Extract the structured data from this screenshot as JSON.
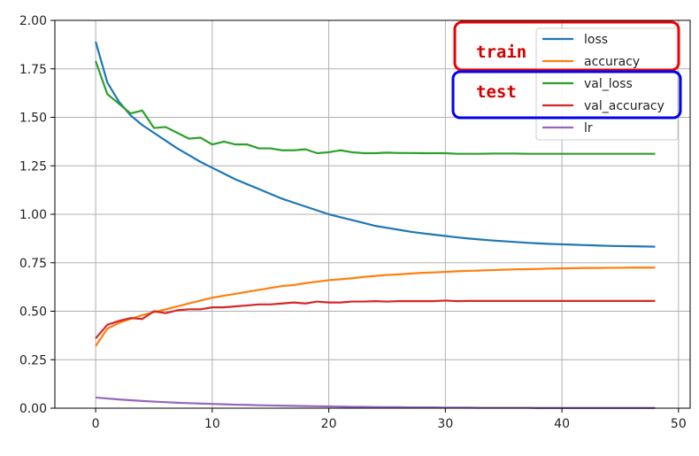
{
  "chart_data": {
    "type": "line",
    "title": "",
    "xlabel": "",
    "ylabel": "",
    "xlim": [
      -3.5,
      51
    ],
    "ylim": [
      0,
      2.0
    ],
    "xticks": [
      0,
      10,
      20,
      30,
      40,
      50
    ],
    "yticks": [
      0.0,
      0.25,
      0.5,
      0.75,
      1.0,
      1.25,
      1.5,
      1.75,
      2.0
    ],
    "xtick_labels": [
      "0",
      "10",
      "20",
      "30",
      "40",
      "50"
    ],
    "ytick_labels": [
      "0.00",
      "0.25",
      "0.50",
      "0.75",
      "1.00",
      "1.25",
      "1.50",
      "1.75",
      "2.00"
    ],
    "grid": true,
    "legend_position": "top-right",
    "x": [
      0,
      1,
      2,
      3,
      4,
      5,
      6,
      7,
      8,
      9,
      10,
      11,
      12,
      13,
      14,
      15,
      16,
      17,
      18,
      19,
      20,
      21,
      22,
      23,
      24,
      25,
      26,
      27,
      28,
      29,
      30,
      31,
      32,
      33,
      34,
      35,
      36,
      37,
      38,
      39,
      40,
      41,
      42,
      43,
      44,
      45,
      46,
      47,
      48
    ],
    "series": [
      {
        "name": "loss",
        "color": "#1f77b4",
        "values": [
          1.89,
          1.68,
          1.58,
          1.51,
          1.46,
          1.42,
          1.38,
          1.34,
          1.305,
          1.27,
          1.24,
          1.21,
          1.18,
          1.155,
          1.13,
          1.105,
          1.08,
          1.06,
          1.04,
          1.02,
          1.0,
          0.985,
          0.97,
          0.955,
          0.94,
          0.93,
          0.92,
          0.91,
          0.902,
          0.895,
          0.888,
          0.881,
          0.875,
          0.87,
          0.865,
          0.861,
          0.857,
          0.853,
          0.85,
          0.847,
          0.845,
          0.843,
          0.841,
          0.839,
          0.837,
          0.836,
          0.835,
          0.834,
          0.833
        ]
      },
      {
        "name": "accuracy",
        "color": "#ff7f0e",
        "values": [
          0.32,
          0.41,
          0.44,
          0.46,
          0.48,
          0.495,
          0.51,
          0.525,
          0.54,
          0.555,
          0.57,
          0.58,
          0.59,
          0.6,
          0.61,
          0.62,
          0.63,
          0.635,
          0.645,
          0.652,
          0.66,
          0.665,
          0.67,
          0.677,
          0.682,
          0.687,
          0.69,
          0.694,
          0.698,
          0.7,
          0.703,
          0.706,
          0.708,
          0.71,
          0.712,
          0.714,
          0.716,
          0.717,
          0.718,
          0.72,
          0.721,
          0.722,
          0.723,
          0.723,
          0.724,
          0.724,
          0.725,
          0.725,
          0.725
        ]
      },
      {
        "name": "val_loss",
        "color": "#2ca02c",
        "values": [
          1.79,
          1.62,
          1.57,
          1.52,
          1.535,
          1.445,
          1.45,
          1.42,
          1.39,
          1.395,
          1.36,
          1.375,
          1.36,
          1.36,
          1.34,
          1.34,
          1.33,
          1.33,
          1.335,
          1.315,
          1.32,
          1.33,
          1.32,
          1.315,
          1.315,
          1.318,
          1.316,
          1.316,
          1.315,
          1.315,
          1.315,
          1.312,
          1.312,
          1.312,
          1.313,
          1.313,
          1.313,
          1.312,
          1.312,
          1.312,
          1.312,
          1.312,
          1.312,
          1.312,
          1.312,
          1.312,
          1.312,
          1.312,
          1.312
        ]
      },
      {
        "name": "val_accuracy",
        "color": "#d62728",
        "values": [
          0.36,
          0.43,
          0.45,
          0.465,
          0.46,
          0.5,
          0.49,
          0.505,
          0.51,
          0.51,
          0.52,
          0.52,
          0.525,
          0.53,
          0.535,
          0.535,
          0.54,
          0.545,
          0.54,
          0.55,
          0.545,
          0.545,
          0.55,
          0.55,
          0.552,
          0.55,
          0.552,
          0.552,
          0.552,
          0.552,
          0.555,
          0.552,
          0.553,
          0.553,
          0.553,
          0.553,
          0.553,
          0.553,
          0.553,
          0.553,
          0.553,
          0.553,
          0.553,
          0.553,
          0.553,
          0.553,
          0.553,
          0.553,
          0.553
        ]
      },
      {
        "name": "lr",
        "color": "#9467bd",
        "values": [
          0.055,
          0.05,
          0.045,
          0.041,
          0.037,
          0.034,
          0.031,
          0.028,
          0.026,
          0.024,
          0.022,
          0.02,
          0.018,
          0.017,
          0.015,
          0.014,
          0.013,
          0.012,
          0.011,
          0.01,
          0.009,
          0.008,
          0.007,
          0.007,
          0.006,
          0.005,
          0.005,
          0.004,
          0.004,
          0.004,
          0.003,
          0.003,
          0.003,
          0.002,
          0.002,
          0.002,
          0.002,
          0.002,
          0.001,
          0.001,
          0.001,
          0.001,
          0.001,
          0.001,
          0.001,
          0.001,
          0.001,
          0.001,
          0.001
        ]
      }
    ],
    "annotations": [
      {
        "text": "train",
        "color": "#d40000",
        "box_color": "#ee0000",
        "groups": [
          "loss",
          "accuracy"
        ]
      },
      {
        "text": "test",
        "color": "#d40000",
        "box_color": "#0000ee",
        "groups": [
          "val_loss",
          "val_accuracy"
        ]
      }
    ]
  }
}
